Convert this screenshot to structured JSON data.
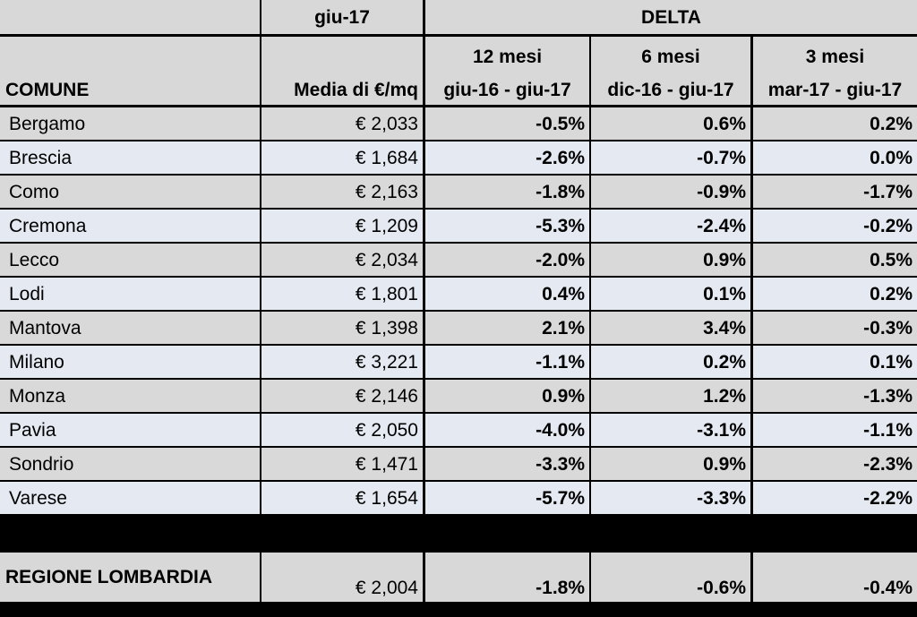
{
  "header": {
    "period": "giu-17",
    "delta": "DELTA",
    "col_comune": "COMUNE",
    "col_media": "Media di €/mq",
    "col_12_title": "12 mesi",
    "col_12_range": "giu-16 - giu-17",
    "col_6_title": "6 mesi",
    "col_6_range": "dic-16 - giu-17",
    "col_3_title": "3 mesi",
    "col_3_range": "mar-17 - giu-17"
  },
  "rows": [
    {
      "comune": "Bergamo",
      "media": "€ 2,033",
      "d12": "-0.5%",
      "d6": "0.6%",
      "d3": "0.2%"
    },
    {
      "comune": "Brescia",
      "media": "€ 1,684",
      "d12": "-2.6%",
      "d6": "-0.7%",
      "d3": "0.0%"
    },
    {
      "comune": "Como",
      "media": "€ 2,163",
      "d12": "-1.8%",
      "d6": "-0.9%",
      "d3": "-1.7%"
    },
    {
      "comune": "Cremona",
      "media": "€ 1,209",
      "d12": "-5.3%",
      "d6": "-2.4%",
      "d3": "-0.2%"
    },
    {
      "comune": "Lecco",
      "media": "€ 2,034",
      "d12": "-2.0%",
      "d6": "0.9%",
      "d3": "0.5%"
    },
    {
      "comune": "Lodi",
      "media": "€ 1,801",
      "d12": "0.4%",
      "d6": "0.1%",
      "d3": "0.2%"
    },
    {
      "comune": "Mantova",
      "media": "€ 1,398",
      "d12": "2.1%",
      "d6": "3.4%",
      "d3": "-0.3%"
    },
    {
      "comune": "Milano",
      "media": "€ 3,221",
      "d12": "-1.1%",
      "d6": "0.2%",
      "d3": "0.1%"
    },
    {
      "comune": "Monza",
      "media": "€ 2,146",
      "d12": "0.9%",
      "d6": "1.2%",
      "d3": "-1.3%"
    },
    {
      "comune": "Pavia",
      "media": "€ 2,050",
      "d12": "-4.0%",
      "d6": "-3.1%",
      "d3": "-1.1%"
    },
    {
      "comune": "Sondrio",
      "media": "€ 1,471",
      "d12": "-3.3%",
      "d6": "0.9%",
      "d3": "-2.3%"
    },
    {
      "comune": "Varese",
      "media": "€ 1,654",
      "d12": "-5.7%",
      "d6": "-3.3%",
      "d3": "-2.2%"
    }
  ],
  "total": {
    "comune": "REGIONE LOMBARDIA",
    "media": "€ 2,004",
    "d12": "-1.8%",
    "d6": "-0.6%",
    "d3": "-0.4%"
  },
  "colors": {
    "header_bg": "#d8d8d8",
    "row_odd_bg": "#d9d9d9",
    "row_even_bg": "#e4e9f2",
    "border": "#000000"
  }
}
